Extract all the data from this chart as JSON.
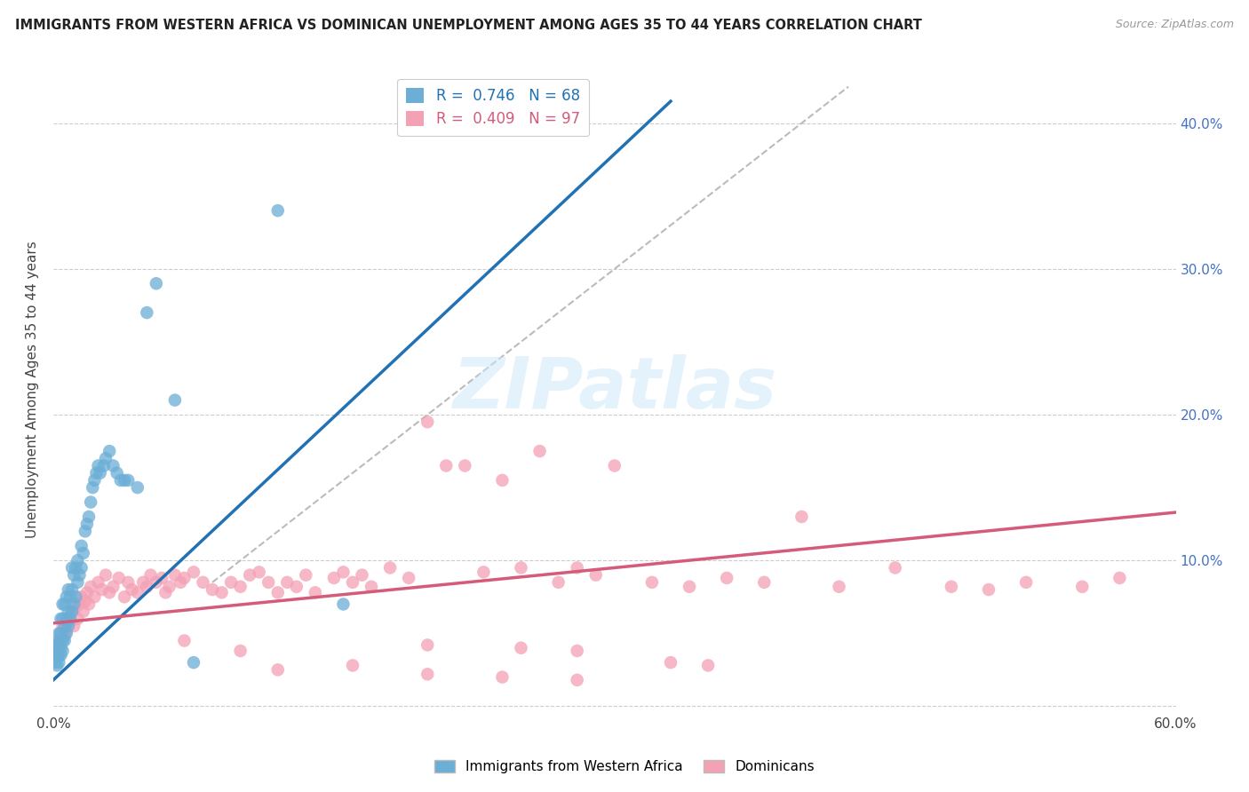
{
  "title": "IMMIGRANTS FROM WESTERN AFRICA VS DOMINICAN UNEMPLOYMENT AMONG AGES 35 TO 44 YEARS CORRELATION CHART",
  "source": "Source: ZipAtlas.com",
  "ylabel": "Unemployment Among Ages 35 to 44 years",
  "xlim": [
    0.0,
    0.6
  ],
  "ylim": [
    -0.005,
    0.44
  ],
  "x_ticks": [
    0.0,
    0.1,
    0.2,
    0.3,
    0.4,
    0.5,
    0.6
  ],
  "y_ticks": [
    0.0,
    0.1,
    0.2,
    0.3,
    0.4
  ],
  "blue_R": 0.746,
  "blue_N": 68,
  "pink_R": 0.409,
  "pink_N": 97,
  "blue_color": "#6baed6",
  "pink_color": "#f4a0b5",
  "blue_line_color": "#2171b5",
  "pink_line_color": "#d45c7a",
  "diag_line_color": "#bbbbbb",
  "watermark_text": "ZIPatlas",
  "blue_scatter_x": [
    0.001,
    0.001,
    0.001,
    0.002,
    0.002,
    0.002,
    0.002,
    0.003,
    0.003,
    0.003,
    0.003,
    0.003,
    0.004,
    0.004,
    0.004,
    0.004,
    0.005,
    0.005,
    0.005,
    0.005,
    0.006,
    0.006,
    0.006,
    0.007,
    0.007,
    0.007,
    0.008,
    0.008,
    0.008,
    0.009,
    0.009,
    0.01,
    0.01,
    0.01,
    0.011,
    0.011,
    0.012,
    0.012,
    0.013,
    0.013,
    0.014,
    0.015,
    0.015,
    0.016,
    0.017,
    0.018,
    0.019,
    0.02,
    0.021,
    0.022,
    0.023,
    0.024,
    0.025,
    0.027,
    0.028,
    0.03,
    0.032,
    0.034,
    0.036,
    0.038,
    0.04,
    0.045,
    0.05,
    0.055,
    0.065,
    0.075,
    0.12,
    0.155
  ],
  "blue_scatter_y": [
    0.03,
    0.032,
    0.035,
    0.028,
    0.033,
    0.038,
    0.042,
    0.03,
    0.035,
    0.04,
    0.045,
    0.05,
    0.035,
    0.04,
    0.05,
    0.06,
    0.038,
    0.045,
    0.06,
    0.07,
    0.045,
    0.055,
    0.07,
    0.05,
    0.06,
    0.075,
    0.055,
    0.065,
    0.08,
    0.06,
    0.075,
    0.065,
    0.08,
    0.095,
    0.07,
    0.09,
    0.075,
    0.095,
    0.085,
    0.1,
    0.09,
    0.095,
    0.11,
    0.105,
    0.12,
    0.125,
    0.13,
    0.14,
    0.15,
    0.155,
    0.16,
    0.165,
    0.16,
    0.165,
    0.17,
    0.175,
    0.165,
    0.16,
    0.155,
    0.155,
    0.155,
    0.15,
    0.27,
    0.29,
    0.21,
    0.03,
    0.34,
    0.07
  ],
  "pink_scatter_x": [
    0.001,
    0.002,
    0.003,
    0.004,
    0.005,
    0.006,
    0.007,
    0.008,
    0.009,
    0.01,
    0.011,
    0.012,
    0.013,
    0.014,
    0.015,
    0.016,
    0.017,
    0.018,
    0.019,
    0.02,
    0.022,
    0.024,
    0.026,
    0.028,
    0.03,
    0.032,
    0.035,
    0.038,
    0.04,
    0.042,
    0.045,
    0.048,
    0.05,
    0.052,
    0.055,
    0.058,
    0.06,
    0.062,
    0.065,
    0.068,
    0.07,
    0.075,
    0.08,
    0.085,
    0.09,
    0.095,
    0.1,
    0.105,
    0.11,
    0.115,
    0.12,
    0.125,
    0.13,
    0.135,
    0.14,
    0.15,
    0.155,
    0.16,
    0.165,
    0.17,
    0.18,
    0.19,
    0.2,
    0.21,
    0.22,
    0.23,
    0.24,
    0.25,
    0.26,
    0.27,
    0.28,
    0.29,
    0.3,
    0.32,
    0.34,
    0.36,
    0.38,
    0.4,
    0.42,
    0.45,
    0.48,
    0.5,
    0.52,
    0.55,
    0.57,
    0.2,
    0.25,
    0.28,
    0.33,
    0.35,
    0.12,
    0.16,
    0.2,
    0.24,
    0.28,
    0.07,
    0.1
  ],
  "pink_scatter_y": [
    0.038,
    0.042,
    0.045,
    0.05,
    0.055,
    0.048,
    0.052,
    0.06,
    0.058,
    0.065,
    0.055,
    0.068,
    0.06,
    0.07,
    0.075,
    0.065,
    0.072,
    0.078,
    0.07,
    0.082,
    0.075,
    0.085,
    0.08,
    0.09,
    0.078,
    0.082,
    0.088,
    0.075,
    0.085,
    0.08,
    0.078,
    0.085,
    0.082,
    0.09,
    0.085,
    0.088,
    0.078,
    0.082,
    0.09,
    0.085,
    0.088,
    0.092,
    0.085,
    0.08,
    0.078,
    0.085,
    0.082,
    0.09,
    0.092,
    0.085,
    0.078,
    0.085,
    0.082,
    0.09,
    0.078,
    0.088,
    0.092,
    0.085,
    0.09,
    0.082,
    0.095,
    0.088,
    0.195,
    0.165,
    0.165,
    0.092,
    0.155,
    0.095,
    0.175,
    0.085,
    0.095,
    0.09,
    0.165,
    0.085,
    0.082,
    0.088,
    0.085,
    0.13,
    0.082,
    0.095,
    0.082,
    0.08,
    0.085,
    0.082,
    0.088,
    0.042,
    0.04,
    0.038,
    0.03,
    0.028,
    0.025,
    0.028,
    0.022,
    0.02,
    0.018,
    0.045,
    0.038
  ],
  "blue_trendline_x": [
    0.0,
    0.33
  ],
  "blue_trendline_y": [
    0.018,
    0.415
  ],
  "pink_trendline_x": [
    0.0,
    0.6
  ],
  "pink_trendline_y": [
    0.057,
    0.133
  ],
  "diag_trendline_x": [
    0.085,
    0.425
  ],
  "diag_trendline_y": [
    0.085,
    0.425
  ]
}
